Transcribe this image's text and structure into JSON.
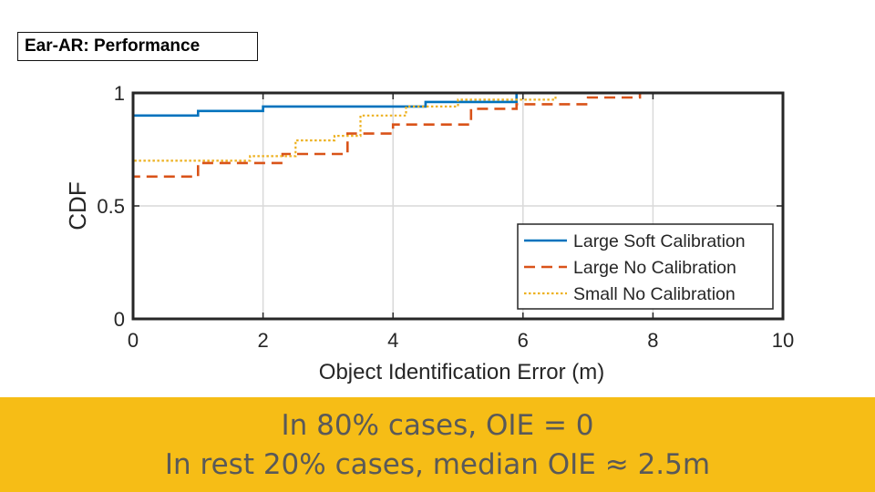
{
  "slide": {
    "title": "Ear-AR: Performance",
    "caption_bg_color": "#F6BD16",
    "caption_lines": [
      "In 80% cases, OIE = 0",
      "In rest 20% cases, median OIE ≈ 2.5m"
    ]
  },
  "chart_data": {
    "type": "line",
    "title": "",
    "xlabel": "Object Identification Error (m)",
    "ylabel": "CDF",
    "xlim": [
      0,
      10
    ],
    "ylim": [
      0,
      1
    ],
    "xticks": [
      0,
      2,
      4,
      6,
      8,
      10
    ],
    "yticks": [
      0,
      0.5,
      1
    ],
    "ytick_labels": [
      "0",
      "0.5",
      "1"
    ],
    "grid": true,
    "legend_position": "bottom-right",
    "series": [
      {
        "name": "Large Soft Calibration",
        "color": "#0072BD",
        "style": "solid",
        "x": [
          0,
          0,
          1,
          1,
          2,
          2,
          4.5,
          4.5,
          5.9,
          5.9,
          6.8
        ],
        "y": [
          0,
          0.9,
          0.9,
          0.92,
          0.92,
          0.94,
          0.94,
          0.96,
          0.96,
          1.0,
          1.0
        ]
      },
      {
        "name": "Large No Calibration",
        "color": "#D95319",
        "style": "dashed",
        "x": [
          0,
          0,
          1,
          1,
          2.3,
          2.3,
          3.3,
          3.3,
          4,
          4,
          5.2,
          5.2,
          5.9,
          5.9,
          7,
          7,
          7.8,
          7.8,
          8.9
        ],
        "y": [
          0,
          0.63,
          0.63,
          0.69,
          0.69,
          0.73,
          0.73,
          0.82,
          0.82,
          0.86,
          0.86,
          0.93,
          0.93,
          0.95,
          0.95,
          0.98,
          0.98,
          1.0,
          1.0
        ]
      },
      {
        "name": "Small No Calibration",
        "color": "#EDB120",
        "style": "dotted",
        "x": [
          0,
          0,
          1.8,
          1.8,
          2.5,
          2.5,
          3.1,
          3.1,
          3.5,
          3.5,
          4.2,
          4.2,
          5,
          5,
          6.5,
          6.5,
          6.8
        ],
        "y": [
          0,
          0.7,
          0.7,
          0.72,
          0.72,
          0.79,
          0.79,
          0.81,
          0.81,
          0.9,
          0.9,
          0.94,
          0.94,
          0.97,
          0.97,
          1.0,
          1.0
        ]
      }
    ]
  }
}
